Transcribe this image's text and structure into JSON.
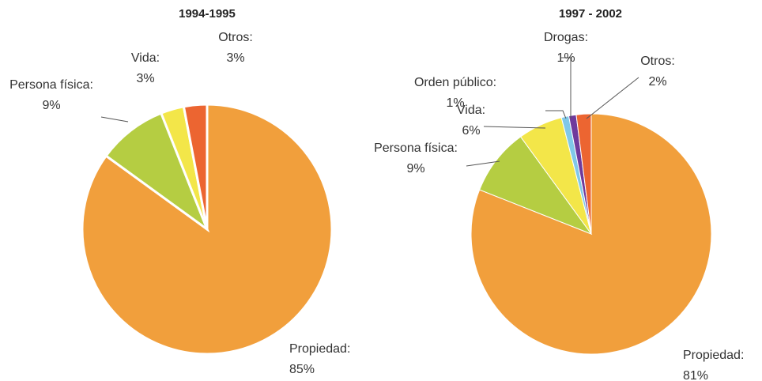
{
  "chart_data": [
    {
      "type": "pie",
      "title": "1994-1995",
      "categories": [
        "Propiedad:",
        "Persona física:",
        "Vida:",
        "Otros:"
      ],
      "values": [
        85,
        9,
        3,
        3
      ],
      "value_labels": [
        "85%",
        "9%",
        "3%",
        "3%"
      ],
      "colors": [
        "#f19f3c",
        "#b5cd42",
        "#f3e649",
        "#ec6531"
      ]
    },
    {
      "type": "pie",
      "title": "1997 - 2002",
      "categories": [
        "Propiedad:",
        "Persona física:",
        "Vida:",
        "Orden público:",
        "Drogas:",
        "Otros:"
      ],
      "values": [
        81,
        9,
        6,
        1,
        1,
        2
      ],
      "value_labels": [
        "81%",
        "9%",
        "6%",
        "1%",
        "1%",
        "2%"
      ],
      "colors": [
        "#f19f3c",
        "#b5cd42",
        "#f3e649",
        "#80c8e8",
        "#6f3a9c",
        "#ec6531"
      ]
    }
  ]
}
